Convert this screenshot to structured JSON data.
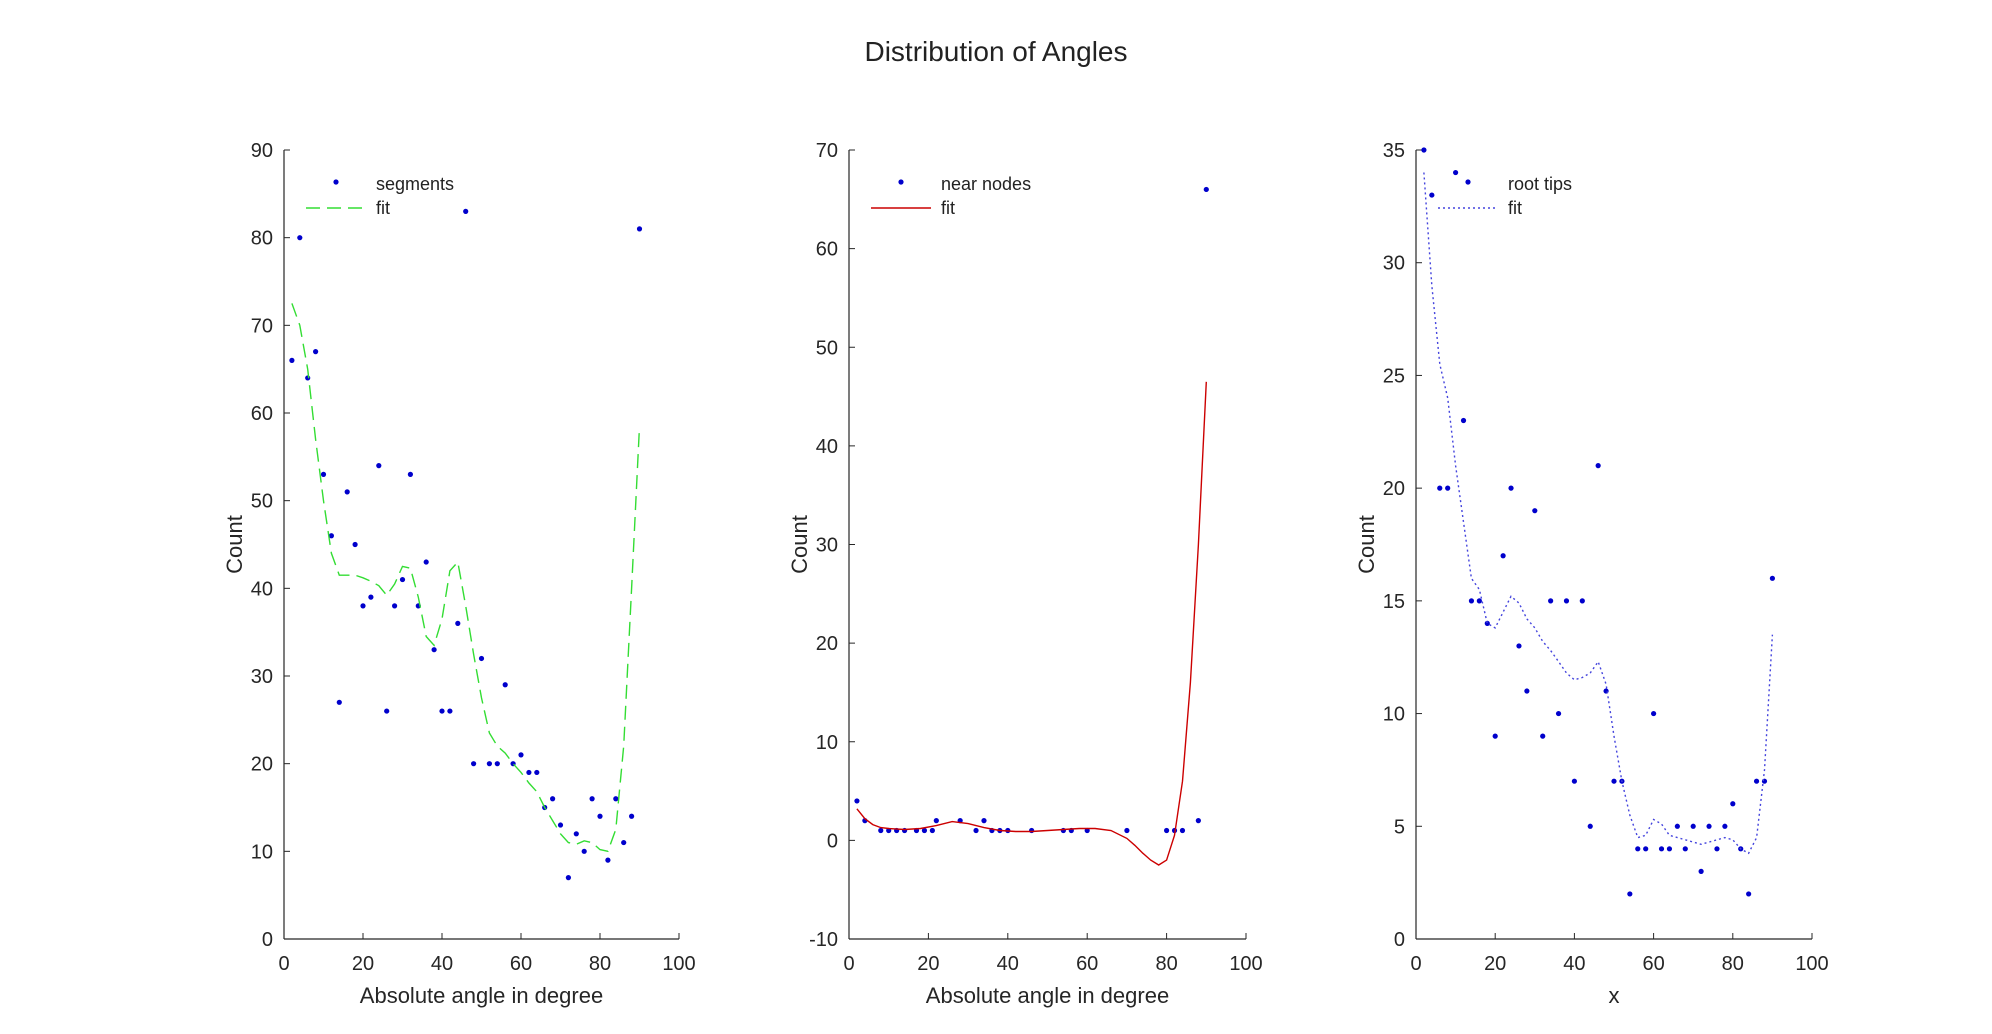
{
  "figure": {
    "title": "Distribution of Angles"
  },
  "chart_data": [
    {
      "type": "scatter",
      "xlabel": "Absolute angle in degree",
      "ylabel": "Count",
      "xlim": [
        0,
        100
      ],
      "ylim": [
        0,
        90
      ],
      "xticks": [
        0,
        20,
        40,
        60,
        80,
        100
      ],
      "yticks": [
        0,
        10,
        20,
        30,
        40,
        50,
        60,
        70,
        80,
        90
      ],
      "legend_position": "top-left",
      "series": [
        {
          "name": "segments",
          "kind": "points",
          "color": "#0000cc",
          "x": [
            2,
            4,
            6,
            8,
            10,
            12,
            14,
            16,
            18,
            20,
            22,
            24,
            26,
            28,
            30,
            32,
            34,
            36,
            38,
            40,
            42,
            44,
            46,
            48,
            50,
            52,
            54,
            56,
            58,
            60,
            62,
            64,
            66,
            68,
            70,
            72,
            74,
            76,
            78,
            80,
            82,
            84,
            86,
            88,
            90
          ],
          "y": [
            66,
            80,
            64,
            67,
            53,
            46,
            27,
            51,
            45,
            38,
            39,
            54,
            26,
            38,
            41,
            53,
            38,
            43,
            33,
            26,
            26,
            36,
            83,
            20,
            32,
            20,
            20,
            29,
            20,
            21,
            19,
            19,
            15,
            16,
            13,
            7,
            12,
            10,
            16,
            14,
            9,
            16,
            11,
            14,
            81
          ]
        },
        {
          "name": "fit",
          "kind": "line",
          "style": "dashed",
          "color": "#33dd33",
          "x": [
            2,
            4,
            6,
            8,
            10,
            12,
            14,
            16,
            18,
            20,
            22,
            24,
            26,
            28,
            30,
            32,
            34,
            36,
            38,
            40,
            42,
            44,
            46,
            48,
            50,
            52,
            54,
            56,
            58,
            60,
            62,
            64,
            66,
            68,
            70,
            72,
            74,
            76,
            78,
            80,
            82,
            84,
            86,
            88,
            90
          ],
          "y": [
            72.5,
            70,
            65,
            57,
            50,
            44,
            41.5,
            41.5,
            41.5,
            41.2,
            40.8,
            40.3,
            39.2,
            40.5,
            42.5,
            42.3,
            39,
            34.5,
            33.5,
            36.5,
            42,
            43,
            38,
            32.5,
            27.5,
            23.5,
            22,
            21.2,
            20,
            19,
            17.8,
            16.8,
            15,
            13.5,
            12,
            11,
            10.8,
            11.2,
            11,
            10.2,
            10,
            12.5,
            22,
            40,
            58.5
          ]
        }
      ]
    },
    {
      "type": "scatter",
      "xlabel": "Absolute angle in degree",
      "ylabel": "Count",
      "xlim": [
        0,
        100
      ],
      "ylim": [
        -10,
        70
      ],
      "xticks": [
        0,
        20,
        40,
        60,
        80,
        100
      ],
      "yticks": [
        -10,
        0,
        10,
        20,
        30,
        40,
        50,
        60,
        70
      ],
      "legend_position": "top-left",
      "series": [
        {
          "name": "near nodes",
          "kind": "points",
          "color": "#0000cc",
          "x": [
            2,
            4,
            8,
            10,
            12,
            14,
            17,
            19,
            21,
            22,
            28,
            32,
            34,
            36,
            38,
            40,
            46,
            54,
            56,
            60,
            70,
            80,
            82,
            84,
            88,
            90
          ],
          "y": [
            4,
            2,
            1,
            1,
            1,
            1,
            1,
            1,
            1,
            2,
            2,
            1,
            2,
            1,
            1,
            1,
            1,
            1,
            1,
            1,
            1,
            1,
            1,
            1,
            2,
            66
          ]
        },
        {
          "name": "fit",
          "kind": "line",
          "style": "solid",
          "color": "#cc0000",
          "x": [
            2,
            4,
            6,
            8,
            10,
            14,
            18,
            22,
            26,
            30,
            34,
            38,
            42,
            46,
            50,
            54,
            58,
            62,
            66,
            70,
            72,
            74,
            76,
            78,
            80,
            82,
            84,
            86,
            88,
            90
          ],
          "y": [
            3.2,
            2.2,
            1.6,
            1.3,
            1.2,
            1.1,
            1.2,
            1.5,
            1.9,
            1.7,
            1.3,
            1.0,
            0.9,
            0.9,
            1.0,
            1.1,
            1.2,
            1.2,
            1.0,
            0.2,
            -0.5,
            -1.3,
            -2.0,
            -2.5,
            -2.0,
            0.5,
            6,
            16,
            30,
            46.5
          ]
        }
      ]
    },
    {
      "type": "scatter",
      "xlabel": "x",
      "ylabel": "Count",
      "xlim": [
        0,
        100
      ],
      "ylim": [
        0,
        35
      ],
      "xticks": [
        0,
        20,
        40,
        60,
        80,
        100
      ],
      "yticks": [
        0,
        5,
        10,
        15,
        20,
        25,
        30,
        35
      ],
      "legend_position": "top-left",
      "series": [
        {
          "name": "root tips",
          "kind": "points",
          "color": "#0000cc",
          "x": [
            2,
            4,
            6,
            8,
            10,
            12,
            14,
            16,
            18,
            20,
            22,
            24,
            26,
            28,
            30,
            32,
            34,
            36,
            38,
            40,
            42,
            44,
            46,
            48,
            50,
            52,
            54,
            56,
            58,
            60,
            62,
            64,
            66,
            68,
            70,
            72,
            74,
            76,
            78,
            80,
            82,
            84,
            86,
            88,
            90
          ],
          "y": [
            35,
            33,
            20,
            20,
            34,
            23,
            15,
            15,
            14,
            9,
            17,
            20,
            13,
            11,
            19,
            9,
            15,
            10,
            15,
            7,
            15,
            5,
            21,
            11,
            7,
            7,
            2,
            4,
            4,
            10,
            4,
            4,
            5,
            4,
            5,
            3,
            5,
            4,
            5,
            6,
            4,
            2,
            7,
            7,
            16
          ]
        },
        {
          "name": "fit",
          "kind": "line",
          "style": "dotted",
          "color": "#4444dd",
          "x": [
            2,
            4,
            6,
            8,
            10,
            12,
            14,
            16,
            18,
            20,
            22,
            24,
            26,
            28,
            30,
            32,
            34,
            36,
            38,
            40,
            42,
            44,
            46,
            48,
            50,
            52,
            54,
            56,
            58,
            60,
            62,
            64,
            66,
            68,
            70,
            72,
            74,
            76,
            78,
            80,
            82,
            84,
            86,
            88,
            90
          ],
          "y": [
            34,
            29,
            25.5,
            24,
            21,
            18.5,
            16,
            15.5,
            14,
            13.8,
            14.5,
            15.2,
            14.9,
            14.2,
            13.8,
            13.2,
            12.8,
            12.3,
            11.8,
            11.5,
            11.6,
            11.8,
            12.3,
            11.3,
            9,
            7,
            5.5,
            4.5,
            4.6,
            5.3,
            5.1,
            4.6,
            4.5,
            4.4,
            4.3,
            4.2,
            4.3,
            4.4,
            4.5,
            4.4,
            4.0,
            3.8,
            4.5,
            7.5,
            13.5
          ]
        }
      ]
    }
  ]
}
